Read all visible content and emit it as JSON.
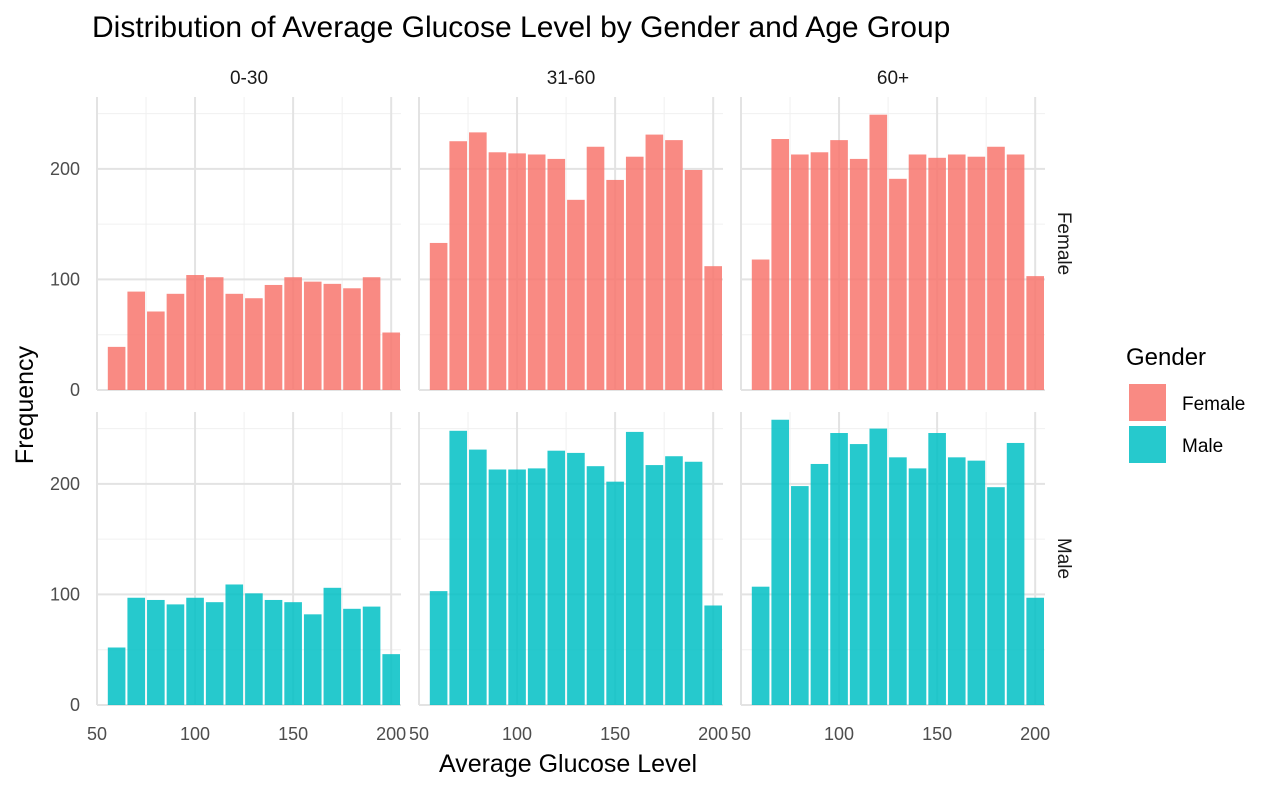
{
  "chart_data": {
    "type": "bar",
    "title": "Distribution of Average Glucose Level by Gender and Age Group",
    "xlabel": "Average Glucose Level",
    "ylabel": "Frequency",
    "xlim": [
      50,
      205
    ],
    "ylim": [
      0,
      265
    ],
    "x_ticks": [
      50,
      100,
      150,
      200
    ],
    "y_ticks": [
      0,
      100,
      200
    ],
    "grid": true,
    "bin_width": 10,
    "bin_centers": [
      60,
      70,
      80,
      90,
      100,
      110,
      120,
      130,
      140,
      150,
      160,
      170,
      180,
      190,
      200
    ],
    "facet_columns": [
      "0-30",
      "31-60",
      "60+"
    ],
    "facet_rows": [
      "Female",
      "Male"
    ],
    "legend": {
      "title": "Gender",
      "position": "right",
      "items": [
        {
          "label": "Female",
          "color": "#F8766D"
        },
        {
          "label": "Male",
          "color": "#00BFC4"
        }
      ]
    },
    "panels": [
      {
        "age_group": "0-30",
        "gender": "Female",
        "values": [
          39,
          89,
          71,
          87,
          104,
          102,
          87,
          83,
          95,
          102,
          98,
          96,
          92,
          102,
          52
        ]
      },
      {
        "age_group": "31-60",
        "gender": "Female",
        "values": [
          133,
          225,
          233,
          215,
          214,
          213,
          209,
          172,
          220,
          190,
          211,
          231,
          226,
          199,
          112
        ]
      },
      {
        "age_group": "60+",
        "gender": "Female",
        "values": [
          118,
          227,
          213,
          215,
          226,
          209,
          249,
          191,
          213,
          210,
          213,
          211,
          220,
          213,
          103
        ]
      },
      {
        "age_group": "0-30",
        "gender": "Male",
        "values": [
          52,
          97,
          95,
          91,
          97,
          93,
          109,
          101,
          95,
          93,
          82,
          106,
          87,
          89,
          46
        ]
      },
      {
        "age_group": "31-60",
        "gender": "Male",
        "values": [
          103,
          248,
          231,
          213,
          213,
          214,
          230,
          228,
          216,
          202,
          247,
          217,
          225,
          220,
          90
        ]
      },
      {
        "age_group": "60+",
        "gender": "Male",
        "values": [
          107,
          258,
          198,
          218,
          246,
          236,
          250,
          224,
          214,
          246,
          224,
          221,
          197,
          237,
          97
        ]
      }
    ]
  }
}
